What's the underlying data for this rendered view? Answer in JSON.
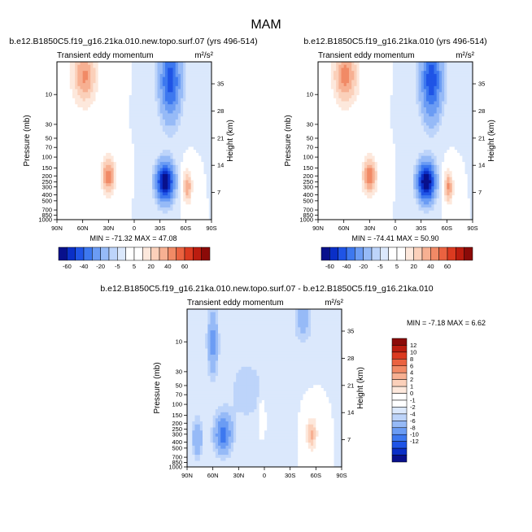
{
  "page": {
    "title": "MAM"
  },
  "palette": {
    "negative": [
      "#08108c",
      "#0a2fc7",
      "#1f54e6",
      "#3d78ef",
      "#6b9cf4",
      "#96baf7",
      "#bdd4fa",
      "#dbe8fc"
    ],
    "neutral": "#ffffff",
    "positive": [
      "#fde8dc",
      "#fbd0ba",
      "#f7b092",
      "#f18a66",
      "#ea6240",
      "#db3a20",
      "#bb1c0f",
      "#8b0a08"
    ]
  },
  "chart_data": [
    {
      "type": "contour",
      "id": "left",
      "subtitle": "b.e12.B1850C5.f19_g16.21ka.010.new.topo.surf.07 (yrs 496-514)",
      "field_label": "Transient eddy momentum",
      "units_label": "m²/s²",
      "ylabel": "Pressure (mb)",
      "y2label": "Height (km)",
      "x_ticks": [
        "90N",
        "60N",
        "30N",
        "0",
        "30S",
        "60S",
        "90S"
      ],
      "y_ticks": [
        "10",
        "30",
        "50",
        "70",
        "100",
        "150",
        "200",
        "250",
        "300",
        "400",
        "500",
        "700",
        "850",
        "1000"
      ],
      "y2_ticks": [
        "35",
        "28",
        "21",
        "14",
        "7"
      ],
      "min_max_text": "MIN = -71.32   MAX =  47.08",
      "min": -71.32,
      "max": 47.08,
      "levels": [
        -60,
        -50,
        -40,
        -30,
        -20,
        -10,
        -5,
        0,
        5,
        10,
        20,
        30,
        40,
        50,
        60
      ],
      "colorbar_labels": [
        "-60",
        "-40",
        "-20",
        "-5",
        "5",
        "20",
        "40",
        "60"
      ],
      "features": [
        {
          "lat": 58,
          "p": 5,
          "value": 42,
          "lat_width": 14,
          "logp_width": 0.45
        },
        {
          "lat": 30,
          "p": 200,
          "value": 47,
          "lat_width": 8,
          "logp_width": 0.28
        },
        {
          "lat": -36,
          "p": 250,
          "value": -71,
          "lat_width": 10,
          "logp_width": 0.3
        },
        {
          "lat": -62,
          "p": 300,
          "value": 40,
          "lat_width": 5,
          "logp_width": 0.25
        },
        {
          "lat": -42,
          "p": 6,
          "value": -45,
          "lat_width": 12,
          "logp_width": 0.6
        }
      ]
    },
    {
      "type": "contour",
      "id": "right",
      "subtitle": "b.e12.B1850C5.f19_g16.21ka.010 (yrs 496-514)",
      "field_label": "Transient eddy momentum",
      "units_label": "m²/s²",
      "ylabel": "Pressure (mb)",
      "y2label": "Height (km)",
      "x_ticks": [
        "90N",
        "60N",
        "30N",
        "0",
        "30S",
        "60S",
        "90S"
      ],
      "y_ticks": [
        "10",
        "30",
        "50",
        "70",
        "100",
        "150",
        "200",
        "250",
        "300",
        "400",
        "500",
        "700",
        "850",
        "1000"
      ],
      "y2_ticks": [
        "35",
        "28",
        "21",
        "14",
        "7"
      ],
      "min_max_text": "MIN = -74.41   MAX =  50.90",
      "min": -74.41,
      "max": 50.9,
      "levels": [
        -60,
        -50,
        -40,
        -30,
        -20,
        -10,
        -5,
        0,
        5,
        10,
        20,
        30,
        40,
        50,
        60
      ],
      "colorbar_labels": [
        "-60",
        "-40",
        "-20",
        "-5",
        "5",
        "20",
        "40",
        "60"
      ],
      "features": [
        {
          "lat": 58,
          "p": 5,
          "value": 45,
          "lat_width": 14,
          "logp_width": 0.45
        },
        {
          "lat": 30,
          "p": 200,
          "value": 51,
          "lat_width": 8,
          "logp_width": 0.28
        },
        {
          "lat": -36,
          "p": 250,
          "value": -74,
          "lat_width": 10,
          "logp_width": 0.3
        },
        {
          "lat": -62,
          "p": 300,
          "value": 42,
          "lat_width": 5,
          "logp_width": 0.25
        },
        {
          "lat": -42,
          "p": 6,
          "value": -47,
          "lat_width": 12,
          "logp_width": 0.6
        }
      ]
    },
    {
      "type": "contour",
      "id": "diff",
      "subtitle": "b.e12.B1850C5.f19_g16.21ka.010.new.topo.surf.07 - b.e12.B1850C5.f19_g16.21ka.010",
      "field_label": "Transient eddy momentum",
      "units_label": "m²/s²",
      "ylabel": "Pressure (mb)",
      "y2label": "Height (km)",
      "x_ticks": [
        "90N",
        "60N",
        "30N",
        "0",
        "30S",
        "60S",
        "90S"
      ],
      "y_ticks": [
        "10",
        "30",
        "50",
        "70",
        "100",
        "150",
        "200",
        "250",
        "300",
        "400",
        "500",
        "700",
        "850",
        "1000"
      ],
      "y2_ticks": [
        "35",
        "28",
        "21",
        "14",
        "7"
      ],
      "min_max_text": "MIN =  -7.18   MAX =   6.62",
      "min": -7.18,
      "max": 6.62,
      "levels": [
        -12,
        -10,
        -8,
        -6,
        -4,
        -2,
        -1,
        0,
        1,
        2,
        4,
        6,
        8,
        10,
        12
      ],
      "colorbar_labels": [
        "12",
        "10",
        "8",
        "6",
        "4",
        "2",
        "1",
        "0",
        "-1",
        "-2",
        "-4",
        "-6",
        "-8",
        "-10",
        "-12"
      ],
      "features": [
        {
          "lat": 60,
          "p": 10,
          "value": -5,
          "lat_width": 6,
          "logp_width": 0.5
        },
        {
          "lat": 48,
          "p": 300,
          "value": -7,
          "lat_width": 10,
          "logp_width": 0.3
        },
        {
          "lat": 78,
          "p": 350,
          "value": -4,
          "lat_width": 6,
          "logp_width": 0.3
        },
        {
          "lat": -55,
          "p": 300,
          "value": 6.6,
          "lat_width": 6,
          "logp_width": 0.25
        },
        {
          "lat": 3,
          "p": 150,
          "value": 2,
          "lat_width": 4,
          "logp_width": 0.25
        },
        {
          "lat": -45,
          "p": 4,
          "value": -3,
          "lat_width": 10,
          "logp_width": 0.4
        },
        {
          "lat": 20,
          "p": 60,
          "value": -1.5,
          "lat_width": 25,
          "logp_width": 0.6
        }
      ]
    }
  ]
}
